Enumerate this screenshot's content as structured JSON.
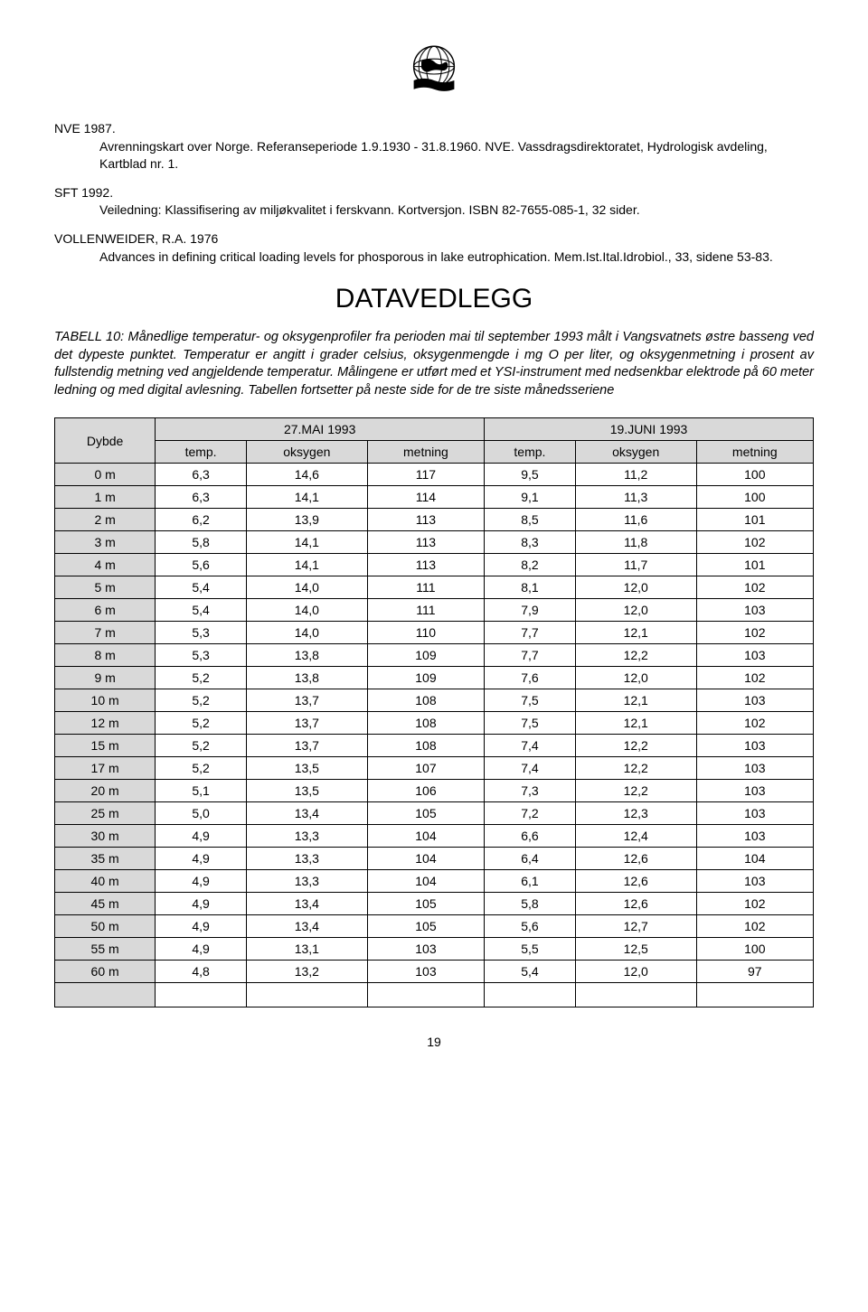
{
  "references": [
    {
      "head": "NVE 1987.",
      "body": "Avrenningskart over Norge. Referanseperiode 1.9.1930 - 31.8.1960. NVE. Vassdragsdirektoratet, Hydrologisk avdeling, Kartblad nr. 1."
    },
    {
      "head": "SFT 1992.",
      "body": "Veiledning: Klassifisering av miljøkvalitet i ferskvann. Kortversjon. ISBN 82-7655-085-1, 32 sider."
    },
    {
      "head": "VOLLENWEIDER, R.A. 1976",
      "body": "Advances in defining critical loading levels for phosporous in lake eutrophication. Mem.Ist.Ital.Idrobiol., 33, sidene 53-83."
    }
  ],
  "heading": "DATAVEDLEGG",
  "caption": "TABELL 10: Månedlige temperatur- og oksygenprofiler fra perioden mai til september 1993 målt i Vangsvatnets østre basseng ved det dypeste punktet. Temperatur er angitt i grader celsius, oksygenmengde i mg O per liter, og oksygenmetning i prosent av fullstendig metning ved angjeldende temperatur. Målingene er utført med et YSI-instrument med nedsenkbar elektrode på 60 meter ledning og med digital avlesning. Tabellen fortsetter på neste side for de tre siste månedsseriene",
  "table": {
    "dybde_label": "Dybde",
    "series": [
      "27.MAI 1993",
      "19.JUNI 1993"
    ],
    "sub_headers": [
      "temp.",
      "oksygen",
      "metning"
    ],
    "rows": [
      {
        "d": "0 m",
        "a": [
          "6,3",
          "14,6",
          "117"
        ],
        "b": [
          "9,5",
          "11,2",
          "100"
        ]
      },
      {
        "d": "1 m",
        "a": [
          "6,3",
          "14,1",
          "114"
        ],
        "b": [
          "9,1",
          "11,3",
          "100"
        ]
      },
      {
        "d": "2 m",
        "a": [
          "6,2",
          "13,9",
          "113"
        ],
        "b": [
          "8,5",
          "11,6",
          "101"
        ]
      },
      {
        "d": "3 m",
        "a": [
          "5,8",
          "14,1",
          "113"
        ],
        "b": [
          "8,3",
          "11,8",
          "102"
        ]
      },
      {
        "d": "4 m",
        "a": [
          "5,6",
          "14,1",
          "113"
        ],
        "b": [
          "8,2",
          "11,7",
          "101"
        ]
      },
      {
        "d": "5 m",
        "a": [
          "5,4",
          "14,0",
          "111"
        ],
        "b": [
          "8,1",
          "12,0",
          "102"
        ]
      },
      {
        "d": "6 m",
        "a": [
          "5,4",
          "14,0",
          "111"
        ],
        "b": [
          "7,9",
          "12,0",
          "103"
        ]
      },
      {
        "d": "7 m",
        "a": [
          "5,3",
          "14,0",
          "110"
        ],
        "b": [
          "7,7",
          "12,1",
          "102"
        ]
      },
      {
        "d": "8 m",
        "a": [
          "5,3",
          "13,8",
          "109"
        ],
        "b": [
          "7,7",
          "12,2",
          "103"
        ]
      },
      {
        "d": "9 m",
        "a": [
          "5,2",
          "13,8",
          "109"
        ],
        "b": [
          "7,6",
          "12,0",
          "102"
        ]
      },
      {
        "d": "10 m",
        "a": [
          "5,2",
          "13,7",
          "108"
        ],
        "b": [
          "7,5",
          "12,1",
          "103"
        ]
      },
      {
        "d": "12 m",
        "a": [
          "5,2",
          "13,7",
          "108"
        ],
        "b": [
          "7,5",
          "12,1",
          "102"
        ]
      },
      {
        "d": "15 m",
        "a": [
          "5,2",
          "13,7",
          "108"
        ],
        "b": [
          "7,4",
          "12,2",
          "103"
        ]
      },
      {
        "d": "17 m",
        "a": [
          "5,2",
          "13,5",
          "107"
        ],
        "b": [
          "7,4",
          "12,2",
          "103"
        ]
      },
      {
        "d": "20 m",
        "a": [
          "5,1",
          "13,5",
          "106"
        ],
        "b": [
          "7,3",
          "12,2",
          "103"
        ]
      },
      {
        "d": "25 m",
        "a": [
          "5,0",
          "13,4",
          "105"
        ],
        "b": [
          "7,2",
          "12,3",
          "103"
        ]
      },
      {
        "d": "30 m",
        "a": [
          "4,9",
          "13,3",
          "104"
        ],
        "b": [
          "6,6",
          "12,4",
          "103"
        ]
      },
      {
        "d": "35 m",
        "a": [
          "4,9",
          "13,3",
          "104"
        ],
        "b": [
          "6,4",
          "12,6",
          "104"
        ]
      },
      {
        "d": "40 m",
        "a": [
          "4,9",
          "13,3",
          "104"
        ],
        "b": [
          "6,1",
          "12,6",
          "103"
        ]
      },
      {
        "d": "45 m",
        "a": [
          "4,9",
          "13,4",
          "105"
        ],
        "b": [
          "5,8",
          "12,6",
          "102"
        ]
      },
      {
        "d": "50 m",
        "a": [
          "4,9",
          "13,4",
          "105"
        ],
        "b": [
          "5,6",
          "12,7",
          "102"
        ]
      },
      {
        "d": "55 m",
        "a": [
          "4,9",
          "13,1",
          "103"
        ],
        "b": [
          "5,5",
          "12,5",
          "100"
        ]
      },
      {
        "d": "60 m",
        "a": [
          "4,8",
          "13,2",
          "103"
        ],
        "b": [
          "5,4",
          "12,0",
          "97"
        ]
      }
    ]
  },
  "page_number": "19",
  "colors": {
    "shaded": "#d9d9d9",
    "border": "#000000",
    "text": "#000000",
    "background": "#ffffff"
  }
}
